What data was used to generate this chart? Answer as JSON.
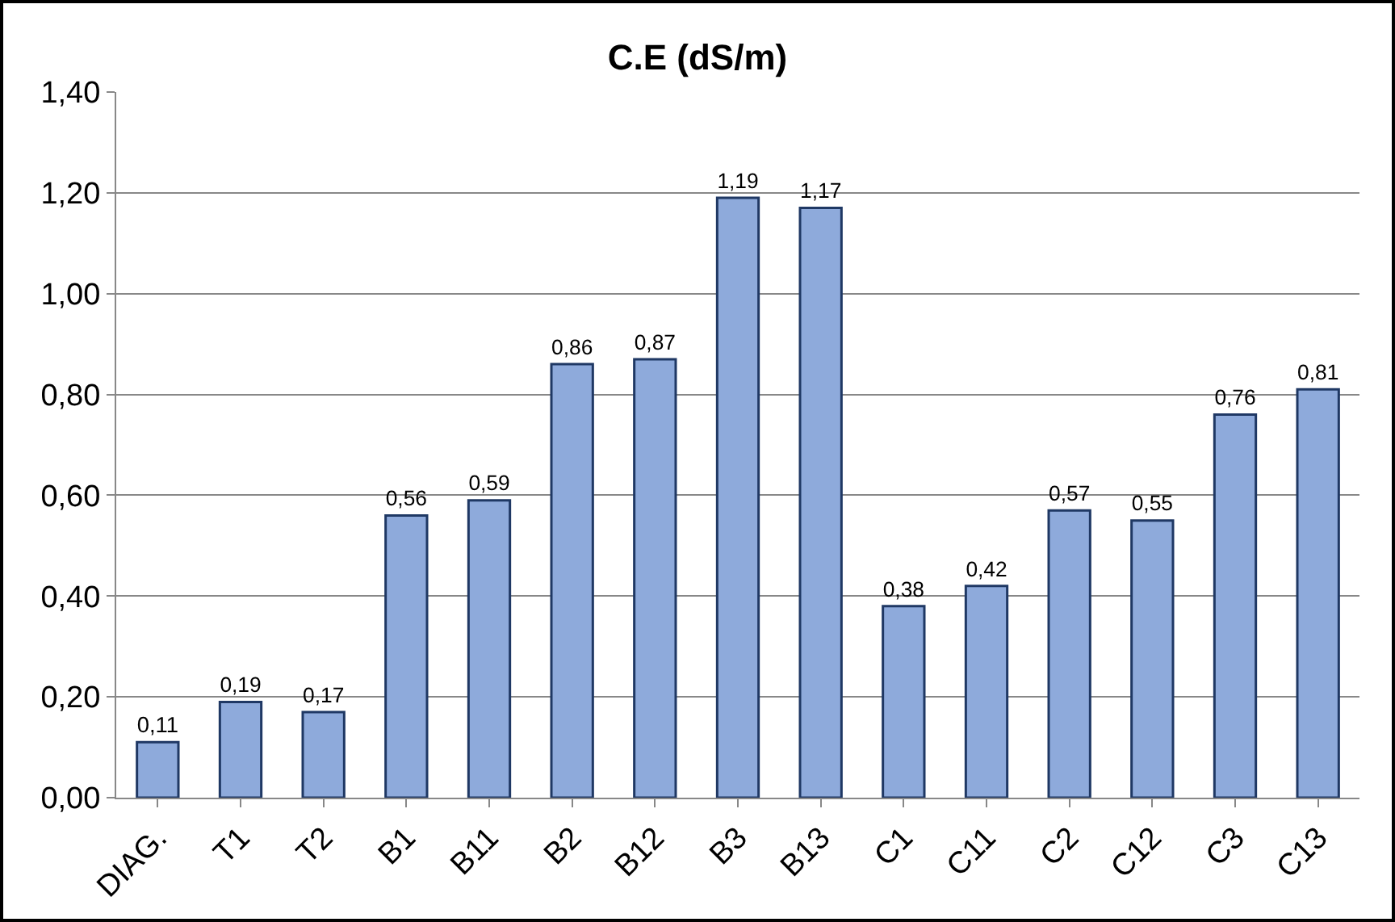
{
  "chart_data": {
    "type": "bar",
    "title": "C.E (dS/m)",
    "categories": [
      "DIAG.",
      "T1",
      "T2",
      "B1",
      "B11",
      "B2",
      "B12",
      "B3",
      "B13",
      "C1",
      "C11",
      "C2",
      "C12",
      "C3",
      "C13"
    ],
    "values": [
      0.11,
      0.19,
      0.17,
      0.56,
      0.59,
      0.86,
      0.87,
      1.19,
      1.17,
      0.38,
      0.42,
      0.57,
      0.55,
      0.76,
      0.81
    ],
    "value_labels": [
      "0,11",
      "0,19",
      "0,17",
      "0,56",
      "0,59",
      "0,86",
      "0,87",
      "1,19",
      "1,17",
      "0,38",
      "0,42",
      "0,57",
      "0,55",
      "0,76",
      "0,81"
    ],
    "color": "#8eaadb",
    "ylim": [
      0,
      1.4
    ],
    "yticks": [
      {
        "value": 0,
        "label": "0,00"
      },
      {
        "value": 0.2,
        "label": "0,20"
      },
      {
        "value": 0.4,
        "label": "0,40"
      },
      {
        "value": 0.6,
        "label": "0,60"
      },
      {
        "value": 0.8,
        "label": "0,80"
      },
      {
        "value": 1,
        "label": "1,00"
      },
      {
        "value": 1.2,
        "label": "1,20"
      },
      {
        "value": 1.4,
        "label": "1,40"
      }
    ],
    "grid": "y"
  }
}
